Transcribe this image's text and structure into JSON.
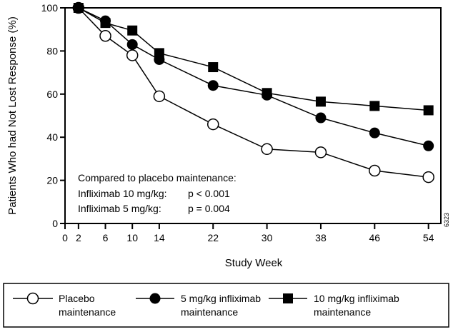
{
  "chart_data": {
    "type": "line",
    "xlabel": "Study Week",
    "ylabel": "Patients Who had Not Lost Response (%)",
    "x_ticks": [
      0,
      2,
      6,
      10,
      14,
      22,
      30,
      38,
      46,
      54
    ],
    "y_ticks": [
      0,
      20,
      40,
      60,
      80,
      100
    ],
    "xlim": [
      0,
      54
    ],
    "ylim": [
      0,
      100
    ],
    "grid": false,
    "legend_placement": "bottom",
    "x": [
      2,
      6,
      10,
      14,
      22,
      30,
      38,
      46,
      54
    ],
    "series": [
      {
        "name": "Placebo maintenance",
        "marker": "open-circle",
        "values": [
          100,
          87,
          78,
          59,
          46,
          34.5,
          33,
          24.5,
          21.5
        ]
      },
      {
        "name": "5 mg/kg infliximab maintenance",
        "marker": "filled-circle",
        "values": [
          100,
          94,
          83,
          76,
          64,
          59.5,
          49,
          42,
          36
        ]
      },
      {
        "name": "10 mg/kg infliximab maintenance",
        "marker": "filled-square",
        "values": [
          100,
          93,
          89.5,
          79,
          72.5,
          60.5,
          56.5,
          54.5,
          52.5
        ]
      }
    ],
    "annotations": [
      "Compared to placebo maintenance:",
      "Infliximab 10 mg/kg:",
      "p < 0.001",
      "Infliximab 5 mg/kg:",
      "p = 0.004"
    ],
    "figure_code": "6323"
  },
  "legend": [
    {
      "line1": "Placebo",
      "line2": "maintenance"
    },
    {
      "line1": "5 mg/kg infliximab",
      "line2": "maintenance"
    },
    {
      "line1": "10 mg/kg infliximab",
      "line2": "maintenance"
    }
  ]
}
